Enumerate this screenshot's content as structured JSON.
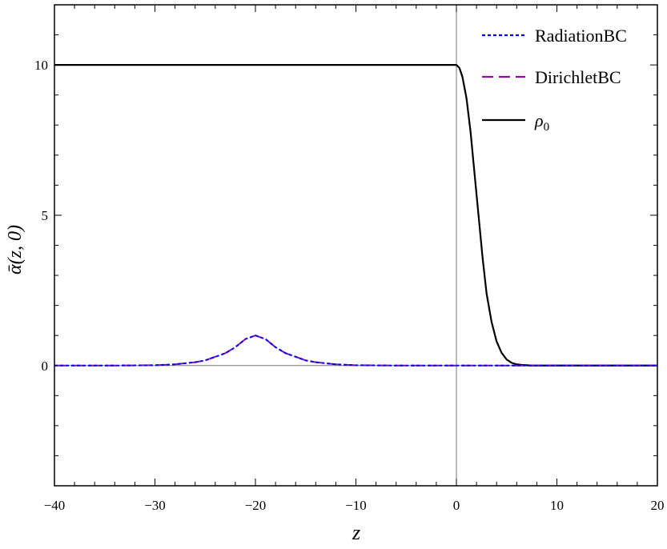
{
  "chart_data": {
    "type": "line",
    "title": "",
    "xlabel": "z",
    "ylabel": "ᾱ(z, 0)",
    "xlim": [
      -40,
      20
    ],
    "ylim": [
      -4,
      12
    ],
    "x_ticks": [
      -40,
      -30,
      -20,
      -10,
      0,
      10,
      20
    ],
    "x_tick_labels": [
      "−40",
      "−30",
      "−20",
      "−10",
      "0",
      "10",
      "20"
    ],
    "y_ticks": [
      0,
      5,
      10
    ],
    "y_tick_labels": [
      "0",
      "5",
      "10"
    ],
    "grid": false,
    "legend_position": "top-right",
    "series": [
      {
        "name": "RadiationBC",
        "color": "#0000ee",
        "style": "dotted",
        "x": [
          -40,
          -34,
          -30,
          -28,
          -26,
          -25,
          -24,
          -23,
          -22,
          -21,
          -20,
          -19,
          -18,
          -17,
          -16,
          -15,
          -14,
          -12,
          -10,
          -6,
          0,
          5,
          10,
          20
        ],
        "y": [
          0,
          0,
          0.01,
          0.04,
          0.11,
          0.17,
          0.29,
          0.41,
          0.61,
          0.88,
          1.0,
          0.88,
          0.61,
          0.41,
          0.29,
          0.17,
          0.11,
          0.04,
          0.01,
          0,
          0,
          0,
          0,
          0
        ]
      },
      {
        "name": "DirichletBC",
        "color": "#8b10a0",
        "style": "dashed",
        "x": [
          -40,
          -34,
          -30,
          -28,
          -26,
          -25,
          -24,
          -23,
          -22,
          -21,
          -20,
          -19,
          -18,
          -17,
          -16,
          -15,
          -14,
          -12,
          -10,
          -6,
          0,
          5,
          10,
          20
        ],
        "y": [
          0,
          0,
          0.01,
          0.04,
          0.11,
          0.17,
          0.29,
          0.41,
          0.61,
          0.88,
          1.0,
          0.88,
          0.61,
          0.41,
          0.29,
          0.17,
          0.11,
          0.04,
          0.01,
          0,
          0,
          0,
          0,
          0
        ]
      },
      {
        "name": "ρ0",
        "color": "#000000",
        "style": "solid",
        "x": [
          -40,
          0,
          0.3,
          0.6,
          1,
          1.4,
          1.8,
          2.2,
          2.6,
          3,
          3.5,
          4,
          4.5,
          5,
          5.5,
          6,
          6.5,
          7,
          7.5,
          8,
          20
        ],
        "y": [
          10,
          10,
          9.9,
          9.6,
          8.9,
          7.8,
          6.4,
          5.0,
          3.6,
          2.4,
          1.45,
          0.8,
          0.42,
          0.2,
          0.09,
          0.04,
          0.02,
          0.01,
          0,
          0,
          0
        ]
      }
    ]
  }
}
